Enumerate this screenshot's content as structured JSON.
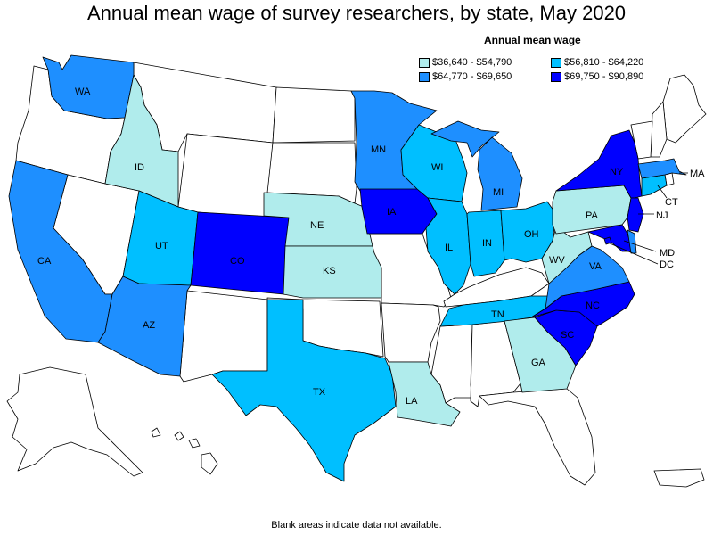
{
  "title": "Annual mean wage of survey researchers, by state, May 2020",
  "legend": {
    "title": "Annual mean wage",
    "items": [
      {
        "label": "$36,640 - $54,790",
        "color": "#b0ecec"
      },
      {
        "label": "$56,810 - $64,220",
        "color": "#00bfff"
      },
      {
        "label": "$64,770 - $69,650",
        "color": "#1e8fff"
      },
      {
        "label": "$69,750 - $90,890",
        "color": "#0000ff"
      }
    ]
  },
  "footnote": "Blank areas indicate data not available.",
  "no_data_color": "#ffffff",
  "states": {
    "WA": {
      "label": "WA",
      "bin": 2
    },
    "ID": {
      "label": "ID",
      "bin": 0
    },
    "CA": {
      "label": "CA",
      "bin": 2
    },
    "UT": {
      "label": "UT",
      "bin": 1
    },
    "AZ": {
      "label": "AZ",
      "bin": 2
    },
    "CO": {
      "label": "CO",
      "bin": 3
    },
    "NE": {
      "label": "NE",
      "bin": 0
    },
    "KS": {
      "label": "KS",
      "bin": 0
    },
    "TX": {
      "label": "TX",
      "bin": 1
    },
    "MN": {
      "label": "MN",
      "bin": 2
    },
    "IA": {
      "label": "IA",
      "bin": 3
    },
    "LA": {
      "label": "LA",
      "bin": 0
    },
    "WI": {
      "label": "WI",
      "bin": 1
    },
    "IL": {
      "label": "IL",
      "bin": 1
    },
    "MI": {
      "label": "MI",
      "bin": 2
    },
    "IN": {
      "label": "IN",
      "bin": 1
    },
    "OH": {
      "label": "OH",
      "bin": 1
    },
    "TN": {
      "label": "TN",
      "bin": 1
    },
    "GA": {
      "label": "GA",
      "bin": 0
    },
    "SC": {
      "label": "SC",
      "bin": 3
    },
    "NC": {
      "label": "NC",
      "bin": 3
    },
    "VA": {
      "label": "VA",
      "bin": 2
    },
    "WV": {
      "label": "WV",
      "bin": 0
    },
    "PA": {
      "label": "PA",
      "bin": 0
    },
    "NY": {
      "label": "NY",
      "bin": 3
    },
    "NJ": {
      "label": "NJ",
      "bin": 3
    },
    "MD": {
      "label": "MD",
      "bin": 3
    },
    "DC": {
      "label": "DC",
      "bin": 3
    },
    "CT": {
      "label": "CT",
      "bin": 1
    },
    "MA": {
      "label": "MA",
      "bin": 2
    },
    "DE": {
      "label": "",
      "bin": 2
    }
  }
}
